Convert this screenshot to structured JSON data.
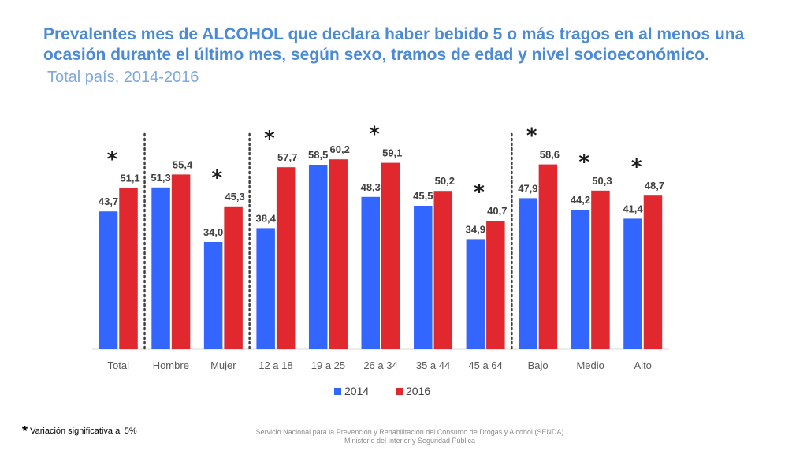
{
  "title": "Prevalentes mes de ALCOHOL que declara haber bebido 5 o más tragos en al menos una ocasión durante el último mes, según sexo, tramos de edad y nivel socioeconómico.",
  "subtitle": "Total país, 2014-2016",
  "footnote": {
    "symbol": "*",
    "text": "Variación significativa al 5%"
  },
  "footer": {
    "line1": "Servicio Nacional para la Prevención y Rehabilitación del Consumo de Drogas y Alcohol (SENDA)",
    "line2": "Ministerio del Interior y Seguridad Pública"
  },
  "chart_data": {
    "type": "bar",
    "categories": [
      "Total",
      "Hombre",
      "Mujer",
      "12 a 18",
      "19 a 25",
      "26 a 34",
      "35 a 44",
      "45 a 64",
      "Bajo",
      "Medio",
      "Alto"
    ],
    "series": [
      {
        "name": "2014",
        "color": "#3366ff",
        "values": [
          43.7,
          51.3,
          34.0,
          38.4,
          58.5,
          48.3,
          45.5,
          34.9,
          47.9,
          44.2,
          41.4
        ],
        "labels": [
          "43,7",
          "51,3",
          "34,0",
          "38,4",
          "58,5",
          "48,3",
          "45,5",
          "34,9",
          "47,9",
          "44,2",
          "41,4"
        ]
      },
      {
        "name": "2016",
        "color": "#e0282e",
        "values": [
          51.1,
          55.4,
          45.3,
          57.7,
          60.2,
          59.1,
          50.2,
          40.7,
          58.6,
          50.3,
          48.7
        ],
        "labels": [
          "51,1",
          "55,4",
          "45,3",
          "57,7",
          "60,2",
          "59,1",
          "50,2",
          "40,7",
          "58,6",
          "50,3",
          "48,7"
        ]
      }
    ],
    "significant": [
      true,
      false,
      true,
      true,
      false,
      true,
      false,
      true,
      true,
      true,
      true
    ],
    "significance_marker": "*",
    "group_dividers_after": [
      "Total",
      "Mujer",
      "45 a 64"
    ],
    "ylim": [
      0,
      70
    ],
    "legend_position": "bottom-center",
    "grid": false
  }
}
